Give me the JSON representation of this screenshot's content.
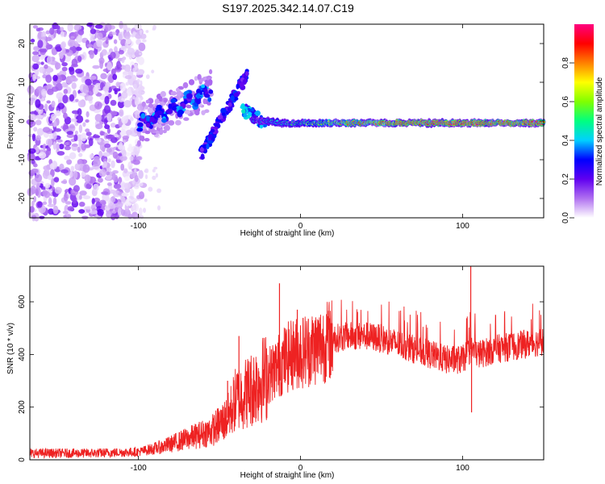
{
  "page_title": "S197.2025.342.14.07.C19",
  "chart_data": [
    {
      "type": "heatmap",
      "name": "spectrogram",
      "title": "S197.2025.342.14.07.C19",
      "xlabel": "Height of straight line (km)",
      "ylabel": "Frequency (Hz)",
      "xlim": [
        -167,
        150
      ],
      "ylim": [
        -25,
        25
      ],
      "xticks": [
        -100,
        0,
        100
      ],
      "yticks": [
        -20,
        -10,
        0,
        10,
        20
      ],
      "colorbar": {
        "label": "Normalized spectral amplitude",
        "range": [
          0,
          1
        ],
        "ticks": [
          0.0,
          0.2,
          0.4,
          0.6,
          0.8
        ],
        "tick_labels": [
          "0.0",
          "0.2",
          "0.4",
          "0.6",
          "0.8"
        ],
        "colormap": [
          "#ffffff",
          "#b070f0",
          "#6000f0",
          "#0000ff",
          "#00d0ff",
          "#00ff80",
          "#80ff00",
          "#ffff00",
          "#ff8000",
          "#ff0000",
          "#ff0080"
        ]
      },
      "features": {
        "noise_region_x": [
          -167,
          -105
        ],
        "dominant_band": {
          "x": [
            -30,
            150
          ],
          "frequency_hz": -0.5,
          "amplitude": 0.9
        },
        "rising_branch_1": {
          "x": [
            -100,
            -55
          ],
          "frequency_hz": [
            -1,
            8
          ]
        },
        "rising_branch_2": {
          "x": [
            -62,
            -33
          ],
          "frequency_hz": [
            -9,
            12
          ]
        }
      }
    },
    {
      "type": "line",
      "name": "snr",
      "xlabel": "Height of straight line (km)",
      "ylabel": "SNR (10 * v/v)",
      "xlim": [
        -167,
        150
      ],
      "ylim": [
        0,
        735
      ],
      "xticks": [
        -100,
        0,
        100
      ],
      "yticks": [
        0,
        200,
        400,
        600
      ],
      "color": "#ee2222",
      "envelope": {
        "x": [
          -167,
          -130,
          -100,
          -85,
          -70,
          -55,
          -45,
          -40,
          -35,
          -30,
          -25,
          -20,
          -15,
          -10,
          -5,
          0,
          10,
          20,
          30,
          40,
          50,
          60,
          70,
          80,
          90,
          100,
          105,
          110,
          120,
          130,
          140,
          150
        ],
        "mean": [
          25,
          25,
          30,
          50,
          80,
          110,
          160,
          230,
          250,
          270,
          300,
          320,
          350,
          380,
          400,
          410,
          430,
          460,
          470,
          470,
          460,
          440,
          420,
          400,
          380,
          380,
          420,
          400,
          420,
          430,
          440,
          450
        ]
      },
      "spikes": [
        {
          "x": -45,
          "y": 300
        },
        {
          "x": -38,
          "y": 470
        },
        {
          "x": -13,
          "y": 670
        },
        {
          "x": -2,
          "y": 570
        },
        {
          "x": 105,
          "y": 735
        },
        {
          "x": 105.5,
          "y": 180
        }
      ]
    }
  ]
}
